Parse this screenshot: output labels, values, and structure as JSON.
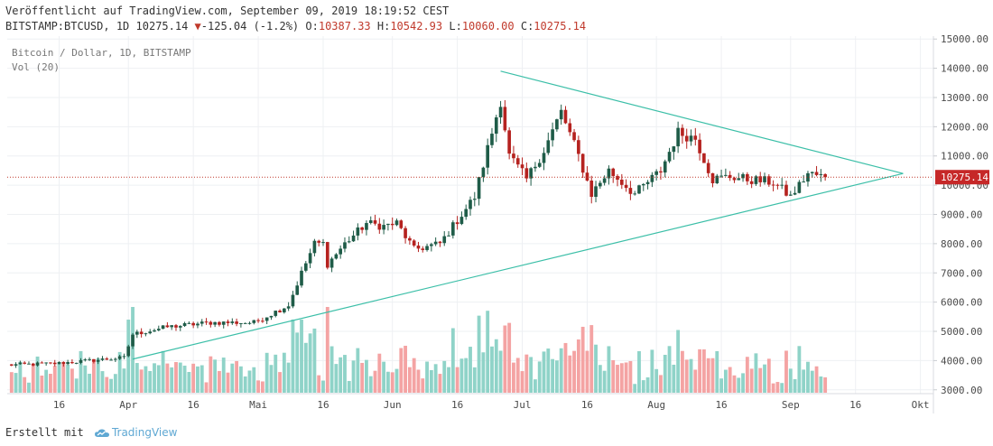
{
  "header": {
    "published": "Veröffentlicht auf TradingView.com, September 09, 2019 18:19:52 CEST",
    "symbol": "BITSTAMP:BTCUSD, 1D",
    "last": "10275.14",
    "arrow": "▼",
    "change": "-125.04 (-1.2%)",
    "o_label": "O:",
    "o": "10387.33",
    "h_label": "H:",
    "h": "10542.93",
    "l_label": "L:",
    "l": "10060.00",
    "c_label": "C:",
    "c": "10275.14"
  },
  "legend": {
    "series_title": "Bitcoin / Dollar, 1D, BITSTAMP",
    "volume_title": "Vol (20)"
  },
  "price_tag": "10275.14",
  "footer": {
    "made_with": "Erstellt mit",
    "brand": "TradingView"
  },
  "colors": {
    "up": "#1f5c48",
    "down": "#b5221f",
    "vol_up": "#8fd3c8",
    "vol_down": "#f4a3a3",
    "trendline": "#3cbfa8",
    "grid": "#eef0f3",
    "price_line": "#c0392b"
  },
  "chart_data": {
    "type": "candlestick",
    "y_range": [
      2900,
      15100
    ],
    "y_ticks": [
      "15000.00",
      "14000.00",
      "13000.00",
      "12000.00",
      "11000.00",
      "10000.00",
      "9000.00",
      "8000.00",
      "7000.00",
      "6000.00",
      "5000.00",
      "4000.00",
      "3000.00"
    ],
    "x_ticks": [
      {
        "date": "2019-03-16",
        "label": "16"
      },
      {
        "date": "2019-04-01",
        "label": "Apr"
      },
      {
        "date": "2019-04-16",
        "label": "16"
      },
      {
        "date": "2019-05-01",
        "label": "Mai"
      },
      {
        "date": "2019-05-16",
        "label": "16"
      },
      {
        "date": "2019-06-01",
        "label": "Jun"
      },
      {
        "date": "2019-06-16",
        "label": "16"
      },
      {
        "date": "2019-07-01",
        "label": "Jul"
      },
      {
        "date": "2019-07-16",
        "label": "16"
      },
      {
        "date": "2019-08-01",
        "label": "Aug"
      },
      {
        "date": "2019-08-16",
        "label": "16"
      },
      {
        "date": "2019-09-01",
        "label": "Sep"
      },
      {
        "date": "2019-09-16",
        "label": "16"
      },
      {
        "date": "2019-10-01",
        "label": "Okt"
      }
    ],
    "x_range": [
      "2019-03-04",
      "2019-10-04"
    ],
    "last_price": 10275.14,
    "trendlines": [
      {
        "from": {
          "date": "2019-06-26",
          "price": 13900
        },
        "to": {
          "date": "2019-09-27",
          "price": 10400
        }
      },
      {
        "from": {
          "date": "2019-04-02",
          "price": 4050
        },
        "to": {
          "date": "2019-09-27",
          "price": 10400
        }
      }
    ],
    "anchors": [
      [
        "2019-03-04",
        3850
      ],
      [
        "2019-03-15",
        3900
      ],
      [
        "2019-03-31",
        4100
      ],
      [
        "2019-04-02",
        4900
      ],
      [
        "2019-04-10",
        5150
      ],
      [
        "2019-04-20",
        5300
      ],
      [
        "2019-04-30",
        5300
      ],
      [
        "2019-05-08",
        5900
      ],
      [
        "2019-05-11",
        7000
      ],
      [
        "2019-05-14",
        8000
      ],
      [
        "2019-05-16",
        8000
      ],
      [
        "2019-05-17",
        7300
      ],
      [
        "2019-05-21",
        8000
      ],
      [
        "2019-05-26",
        8700
      ],
      [
        "2019-05-30",
        8600
      ],
      [
        "2019-06-02",
        8700
      ],
      [
        "2019-06-06",
        7800
      ],
      [
        "2019-06-12",
        8000
      ],
      [
        "2019-06-16",
        8800
      ],
      [
        "2019-06-20",
        9600
      ],
      [
        "2019-06-22",
        10700
      ],
      [
        "2019-06-26",
        12900
      ],
      [
        "2019-06-28",
        11000
      ],
      [
        "2019-07-02",
        10200
      ],
      [
        "2019-07-06",
        11200
      ],
      [
        "2019-07-10",
        12500
      ],
      [
        "2019-07-14",
        11000
      ],
      [
        "2019-07-17",
        9700
      ],
      [
        "2019-07-21",
        10500
      ],
      [
        "2019-07-27",
        9700
      ],
      [
        "2019-08-02",
        10500
      ],
      [
        "2019-08-06",
        11800
      ],
      [
        "2019-08-10",
        11600
      ],
      [
        "2019-08-14",
        10200
      ],
      [
        "2019-08-18",
        10300
      ],
      [
        "2019-08-22",
        10200
      ],
      [
        "2019-08-28",
        10100
      ],
      [
        "2019-09-01",
        9600
      ],
      [
        "2019-09-05",
        10400
      ],
      [
        "2019-09-09",
        10275
      ]
    ]
  }
}
